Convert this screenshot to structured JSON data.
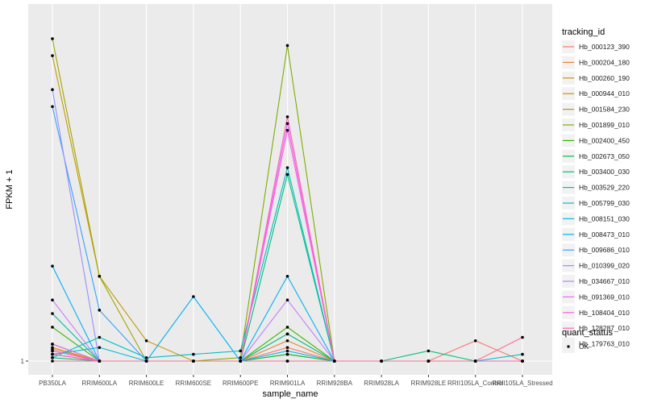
{
  "chart_data": {
    "type": "line",
    "xlabel": "sample_name",
    "ylabel": "FPKM + 1",
    "categories": [
      "PB350LA",
      "RRIM600LA",
      "RRIM600LE",
      "RRIM600SE",
      "RRIM600PE",
      "RRIM901LA",
      "RRIM928BA",
      "RRIM928LA",
      "RRIM928LE",
      "RRII105LA_Control",
      "RRII105LA_Stressed"
    ],
    "y_tick_labels": [
      "1"
    ],
    "legend_title": "tracking_id",
    "status_legend": {
      "title": "quant_status",
      "items": [
        {
          "label": "OK",
          "shape": "square"
        }
      ]
    },
    "grid": true,
    "background": "#ebebeb",
    "gridline_color": "#ffffff",
    "point_color": "#000000",
    "series": [
      {
        "name": "Hb_000123_390",
        "color": "#F8766D",
        "values": [
          1.035,
          1.0,
          1.0,
          1.0,
          1.0,
          1.04,
          1.0,
          1.0,
          1.0,
          1.06,
          1.0
        ]
      },
      {
        "name": "Hb_000204_180",
        "color": "#EA8331",
        "values": [
          1.03,
          1.0,
          1.0,
          1.0,
          1.0,
          1.06,
          1.0,
          1.0,
          1.0,
          1.0,
          1.0
        ]
      },
      {
        "name": "Hb_000260_190",
        "color": "#D89000",
        "values": [
          1.04,
          1.0,
          1.0,
          1.0,
          1.0,
          1.08,
          1.0,
          1.0,
          1.0,
          1.0,
          1.0
        ]
      },
      {
        "name": "Hb_000944_010",
        "color": "#C09B00",
        "values": [
          1.9,
          1.25,
          1.06,
          1.0,
          1.0,
          1.02,
          1.0,
          1.0,
          1.0,
          1.0,
          1.0
        ]
      },
      {
        "name": "Hb_001584_230",
        "color": "#A3A500",
        "values": [
          1.95,
          1.25,
          1.0,
          1.0,
          1.0,
          1.0,
          1.0,
          1.0,
          1.0,
          1.0,
          1.0
        ]
      },
      {
        "name": "Hb_001899_010",
        "color": "#7CAE00",
        "values": [
          1.05,
          1.0,
          1.0,
          1.0,
          1.01,
          1.93,
          1.0,
          1.0,
          1.0,
          1.0,
          1.0
        ]
      },
      {
        "name": "Hb_002400_450",
        "color": "#39B600",
        "values": [
          1.1,
          1.0,
          1.0,
          1.0,
          1.0,
          1.1,
          1.0,
          1.0,
          1.0,
          1.0,
          1.0
        ]
      },
      {
        "name": "Hb_002673_050",
        "color": "#00BB4E",
        "values": [
          1.02,
          1.0,
          1.0,
          1.0,
          1.0,
          1.02,
          1.0,
          1.0,
          1.0,
          1.0,
          1.0
        ]
      },
      {
        "name": "Hb_003400_030",
        "color": "#00BF7D",
        "values": [
          1.01,
          1.0,
          1.0,
          1.0,
          1.0,
          1.55,
          1.0,
          1.0,
          1.03,
          1.0,
          1.0
        ]
      },
      {
        "name": "Hb_003529_220",
        "color": "#00C1A3",
        "values": [
          1.14,
          1.0,
          1.0,
          1.0,
          1.0,
          1.08,
          1.0,
          1.0,
          1.0,
          1.0,
          1.0
        ]
      },
      {
        "name": "Hb_005799_030",
        "color": "#00BFC4",
        "values": [
          1.01,
          1.07,
          1.01,
          1.02,
          1.03,
          1.57,
          1.0,
          1.0,
          1.0,
          1.0,
          1.02
        ]
      },
      {
        "name": "Hb_008151_030",
        "color": "#00BAE0",
        "values": [
          1.02,
          1.04,
          1.0,
          1.0,
          1.0,
          1.03,
          1.0,
          1.0,
          1.0,
          1.0,
          1.0
        ]
      },
      {
        "name": "Hb_008473_010",
        "color": "#00B0F6",
        "values": [
          1.28,
          1.0,
          1.0,
          1.19,
          1.0,
          1.25,
          1.0,
          1.0,
          1.0,
          1.0,
          1.0
        ]
      },
      {
        "name": "Hb_009686_010",
        "color": "#35A2FF",
        "values": [
          1.75,
          1.15,
          1.0,
          1.0,
          1.0,
          1.0,
          1.0,
          1.0,
          1.0,
          1.0,
          1.0
        ]
      },
      {
        "name": "Hb_010399_020",
        "color": "#9590FF",
        "values": [
          1.8,
          1.0,
          1.0,
          1.0,
          1.0,
          1.0,
          1.0,
          1.0,
          1.0,
          1.0,
          1.0
        ]
      },
      {
        "name": "Hb_034667_010",
        "color": "#C77CFF",
        "values": [
          1.18,
          1.0,
          1.0,
          1.0,
          1.0,
          1.18,
          1.0,
          1.0,
          1.0,
          1.0,
          1.0
        ]
      },
      {
        "name": "Hb_091369_010",
        "color": "#E76BF3",
        "values": [
          1.05,
          1.0,
          1.0,
          1.0,
          1.0,
          1.7,
          1.0,
          1.0,
          1.0,
          1.0,
          1.0
        ]
      },
      {
        "name": "Hb_108404_010",
        "color": "#FA62DB",
        "values": [
          1.03,
          1.0,
          1.0,
          1.0,
          1.0,
          1.68,
          1.0,
          1.0,
          1.0,
          1.0,
          1.0
        ]
      },
      {
        "name": "Hb_128287_010",
        "color": "#FF62BC",
        "values": [
          1.02,
          1.0,
          1.0,
          1.0,
          1.0,
          1.72,
          1.0,
          1.0,
          1.0,
          1.0,
          1.0
        ]
      },
      {
        "name": "Hb_179763_010",
        "color": "#FF6C91",
        "values": [
          1.0,
          1.0,
          1.0,
          1.0,
          1.0,
          1.0,
          1.0,
          1.0,
          1.0,
          1.0,
          1.07
        ]
      }
    ]
  }
}
